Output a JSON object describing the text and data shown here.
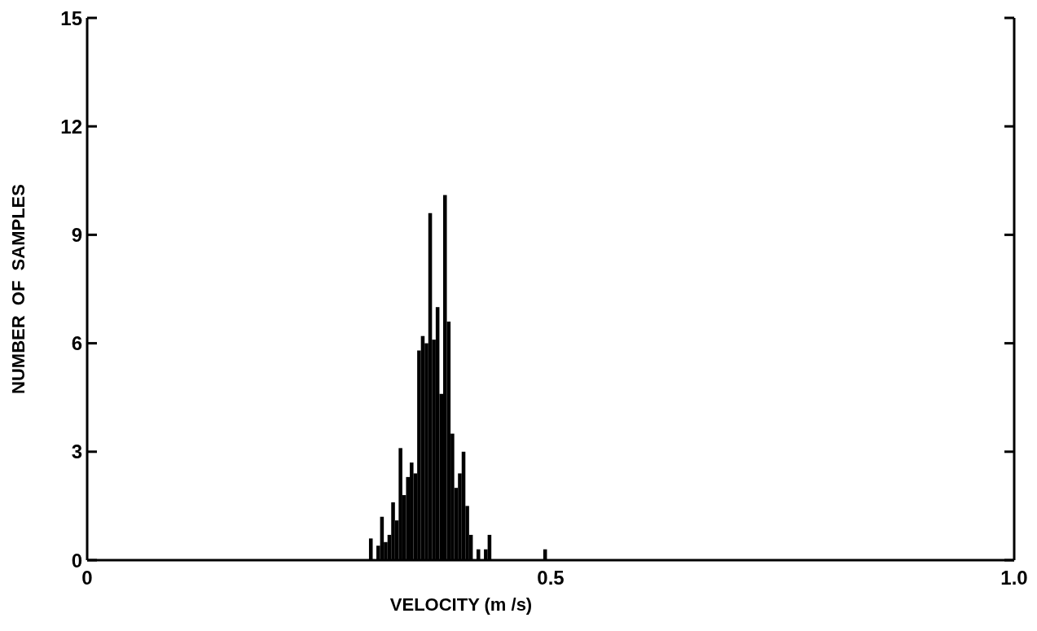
{
  "chart_data": {
    "type": "histogram",
    "xlabel": "VELOCITY (m /s)",
    "ylabel": "NUMBER  OF  SAMPLES",
    "bins": [
      0.3,
      0.304,
      0.308,
      0.312,
      0.316,
      0.32,
      0.324,
      0.328,
      0.332,
      0.336,
      0.34,
      0.344,
      0.348,
      0.352,
      0.356,
      0.36,
      0.364,
      0.368,
      0.372,
      0.376,
      0.38,
      0.384,
      0.388,
      0.392,
      0.396,
      0.4,
      0.404,
      0.408,
      0.412,
      0.416,
      0.42,
      0.424,
      0.428,
      0.432,
      0.436,
      0.44,
      0.444,
      0.448,
      0.452,
      0.456,
      0.46,
      0.464,
      0.468,
      0.472,
      0.476,
      0.48,
      0.484,
      0.488,
      0.492,
      0.496
    ],
    "values": [
      0,
      0.6,
      0,
      0.4,
      1.2,
      0.5,
      0.7,
      1.6,
      1.1,
      3.1,
      1.8,
      2.3,
      2.7,
      2.4,
      5.8,
      6.2,
      6.0,
      9.6,
      6.1,
      7.0,
      4.6,
      10.1,
      6.6,
      3.5,
      2.0,
      2.4,
      3.0,
      1.5,
      0.7,
      0,
      0.3,
      0,
      0.3,
      0.7,
      0,
      0,
      0,
      0,
      0,
      0,
      0,
      0,
      0,
      0,
      0,
      0,
      0,
      0,
      0.3
    ],
    "color": "#000000",
    "xlim": [
      0,
      1.0
    ],
    "xticks": [
      0,
      0.5,
      {
        "value": 1.0,
        "label": "1.0"
      }
    ],
    "ylim": [
      0,
      15
    ],
    "yticks": [
      0,
      3,
      6,
      9,
      12,
      15
    ]
  }
}
